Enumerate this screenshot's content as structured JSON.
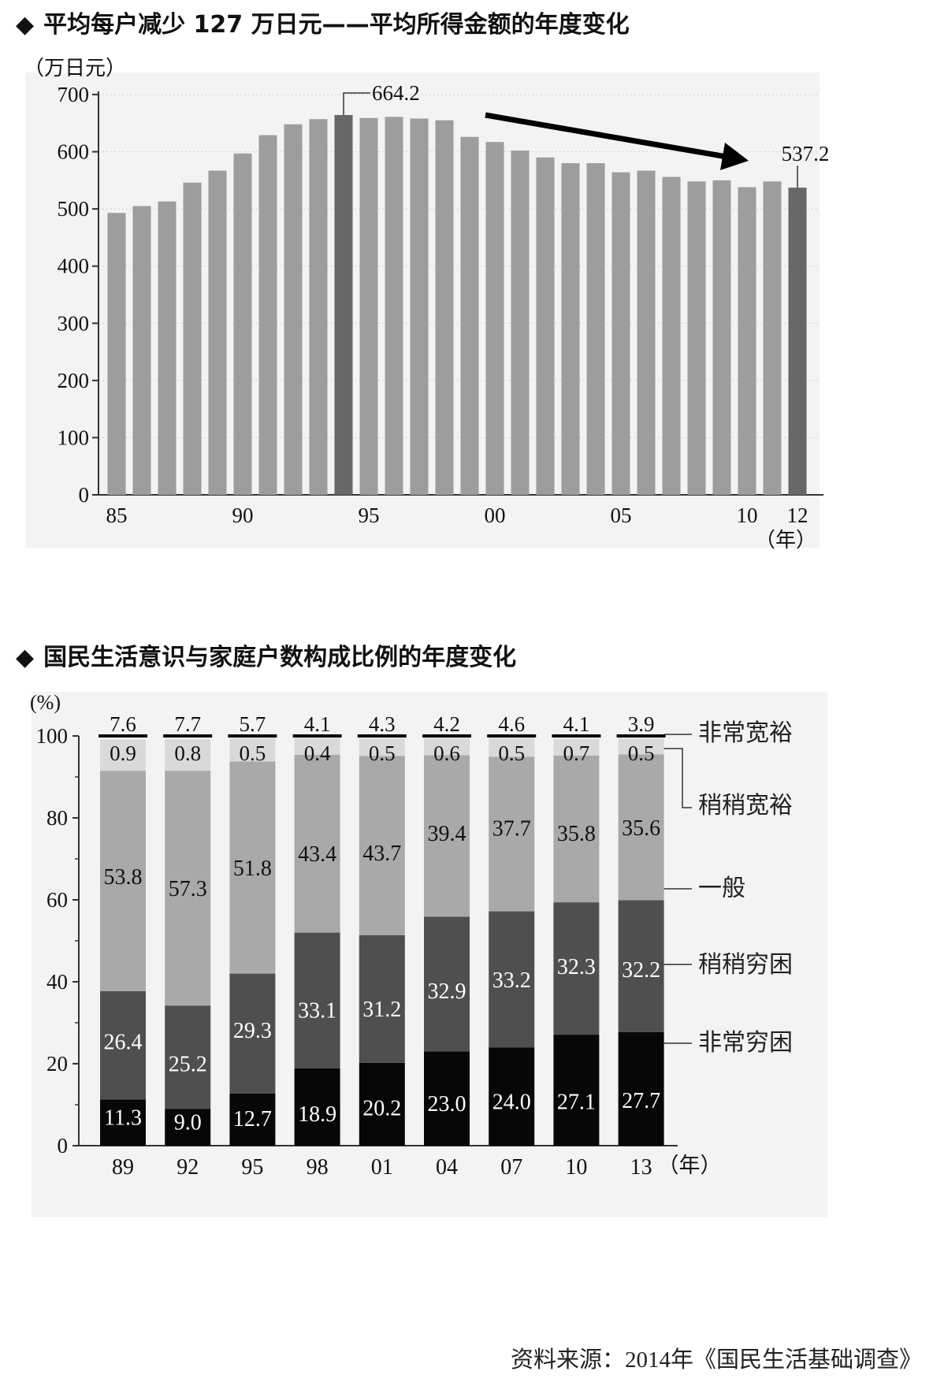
{
  "chart1": {
    "title": "平均每户减少 127 万日元——平均所得金额的年度变化",
    "bullet": "◆",
    "unit_label": "（万日元）",
    "year_unit": "（年）",
    "highlight_labels": [
      "664.2",
      "537.2"
    ]
  },
  "chart2": {
    "title": "国民生活意识与家庭户数构成比例的年度变化",
    "bullet": "◆",
    "unit_label": "(%)",
    "year_unit": "（年）",
    "legend": [
      "非常宽裕",
      "稍稍宽裕",
      "一般",
      "稍稍穷困",
      "非常穷困"
    ]
  },
  "source": "资料来源：2014年《国民生活基础调查》",
  "chart_data": [
    {
      "type": "bar",
      "title": "平均每户减少 127 万日元——平均所得金额的年度变化",
      "ylabel": "（万日元）",
      "xlabel": "（年）",
      "ylim": [
        0,
        700
      ],
      "yticks": [
        0,
        100,
        200,
        300,
        400,
        500,
        600,
        700
      ],
      "xtick_labels": [
        "85",
        "90",
        "95",
        "00",
        "05",
        "10",
        "12"
      ],
      "categories": [
        "1985",
        "1986",
        "1987",
        "1988",
        "1989",
        "1990",
        "1991",
        "1992",
        "1993",
        "1994",
        "1995",
        "1996",
        "1997",
        "1998",
        "1999",
        "2000",
        "2001",
        "2002",
        "2003",
        "2004",
        "2005",
        "2006",
        "2007",
        "2008",
        "2009",
        "2010",
        "2011",
        "2012"
      ],
      "values": [
        493,
        505,
        513,
        546,
        567,
        597,
        629,
        648,
        657,
        664.2,
        659,
        661,
        658,
        655,
        626,
        617,
        602,
        590,
        580,
        580,
        564,
        567,
        556,
        548,
        550,
        538,
        548,
        537.2
      ],
      "highlight": [
        "1994",
        "2012"
      ],
      "colors": {
        "bar": "#9d9d9d",
        "highlight": "#676767",
        "arrow": "#000000"
      }
    },
    {
      "type": "bar",
      "stacked": true,
      "title": "国民生活意识与家庭户数构成比例的年度变化",
      "ylabel": "(%)",
      "xlabel": "（年）",
      "ylim": [
        0,
        100
      ],
      "yticks": [
        0,
        20,
        40,
        60,
        80,
        100
      ],
      "categories": [
        "89",
        "92",
        "95",
        "98",
        "01",
        "04",
        "07",
        "10",
        "13"
      ],
      "series": [
        {
          "name": "非常穷困",
          "values": [
            11.3,
            9.0,
            12.7,
            18.9,
            20.2,
            23.0,
            24.0,
            27.1,
            27.7
          ],
          "color": "#070707",
          "label_color": "#ffffff"
        },
        {
          "name": "稍稍穷困",
          "values": [
            26.4,
            25.2,
            29.3,
            33.1,
            31.2,
            32.9,
            33.2,
            32.3,
            32.2
          ],
          "color": "#4f4f4f",
          "label_color": "#ffffff"
        },
        {
          "name": "一般",
          "values": [
            53.8,
            57.3,
            51.8,
            43.4,
            43.7,
            39.4,
            37.7,
            35.8,
            35.6
          ],
          "color": "#a9a9a9",
          "label_color": "#111111"
        },
        {
          "name": "稍稍宽裕",
          "values": [
            7.6,
            7.7,
            5.7,
            4.1,
            4.3,
            4.2,
            4.6,
            4.1,
            3.9
          ],
          "color": "#d9d9d9",
          "label_color": "#111111"
        },
        {
          "name": "非常宽裕",
          "values": [
            0.9,
            0.8,
            0.5,
            0.4,
            0.5,
            0.6,
            0.5,
            0.7,
            0.5
          ],
          "color": "#000000",
          "label_color": "#111111"
        }
      ],
      "value_labels": {
        "非常穷困": [
          "11.3",
          "9.0",
          "12.7",
          "18.9",
          "20.2",
          "23.0",
          "24.0",
          "27.1",
          "27.7"
        ],
        "稍稍穷困": [
          "26.4",
          "25.2",
          "29.3",
          "33.1",
          "31.2",
          "32.9",
          "33.2",
          "32.3",
          "32.2"
        ],
        "一般": [
          "53.8",
          "57.3",
          "51.8",
          "43.4",
          "43.7",
          "39.4",
          "37.7",
          "35.8",
          "35.6"
        ],
        "top_row": [
          "7.6",
          "7.7",
          "5.7",
          "4.1",
          "4.3",
          "4.2",
          "4.6",
          "4.1",
          "3.9"
        ],
        "second_row": [
          "0.9",
          "0.8",
          "0.5",
          "0.4",
          "0.5",
          "0.6",
          "0.5",
          "0.7",
          "0.5"
        ]
      },
      "legend_position": "right"
    }
  ]
}
